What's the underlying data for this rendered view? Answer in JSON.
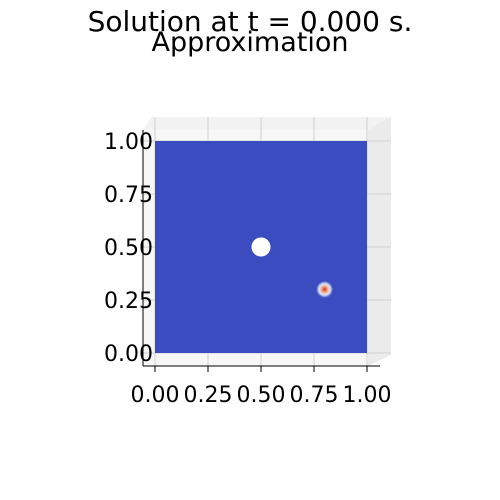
{
  "figure": {
    "suptitle": "Solution at t = 0.000 s.",
    "title": "Approximation"
  },
  "chart_data": {
    "type": "surface",
    "title": "Approximation",
    "colormap": "coolwarm",
    "colors": {
      "field": "#3b4cc0",
      "hot": "#d73027",
      "warm": "#f4a582",
      "pale": "#dde8f8"
    },
    "x_ticks": [
      "0.00",
      "0.25",
      "0.50",
      "0.75",
      "1.00"
    ],
    "y_ticks": [
      "0.00",
      "0.25",
      "0.50",
      "0.75",
      "1.00"
    ],
    "xlim": [
      0,
      1
    ],
    "ylim": [
      0,
      1
    ],
    "hole": {
      "x": 0.5,
      "y": 0.5,
      "r": 0.045
    },
    "hotspot": {
      "x": 0.8,
      "y": 0.3,
      "r": 0.04
    },
    "grid": true,
    "view": "top"
  }
}
